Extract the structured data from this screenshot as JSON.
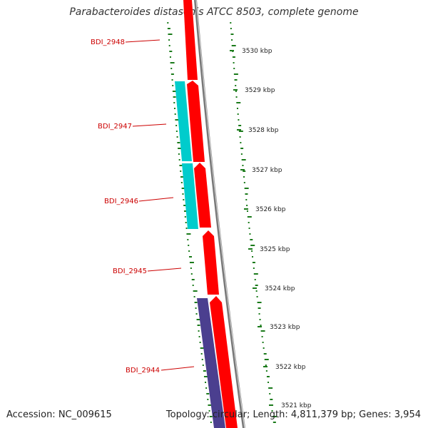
{
  "title": "Parabacteroides distasonis ATCC 8503, complete genome",
  "accession": "Accession: NC_009615",
  "summary": "Topology: circular; Length: 4,811,379 bp; Genes: 3,954",
  "colors": {
    "gene_red": "#ff0000",
    "gene_cyan": "#00cccc",
    "gene_purple": "#4b3f8f",
    "label_red": "#cc0000",
    "tick_green": "#1a7a1a",
    "backbone": "#888888"
  },
  "genes": [
    {
      "name": "BDI_2948",
      "color": "red"
    },
    {
      "name": "BDI_2947",
      "color": "cyan"
    },
    {
      "name": "BDI_2946",
      "color": "cyan"
    },
    {
      "name": "BDI_2945",
      "color": "red"
    },
    {
      "name": "BDI_2944",
      "color": "purple"
    }
  ],
  "kbp_labels": [
    "3530 kbp",
    "3529 kbp",
    "3528 kbp",
    "3527 kbp",
    "3526 kbp",
    "3525 kbp",
    "3524 kbp",
    "3523 kbp",
    "3522 kbp",
    "3521 kbp"
  ]
}
